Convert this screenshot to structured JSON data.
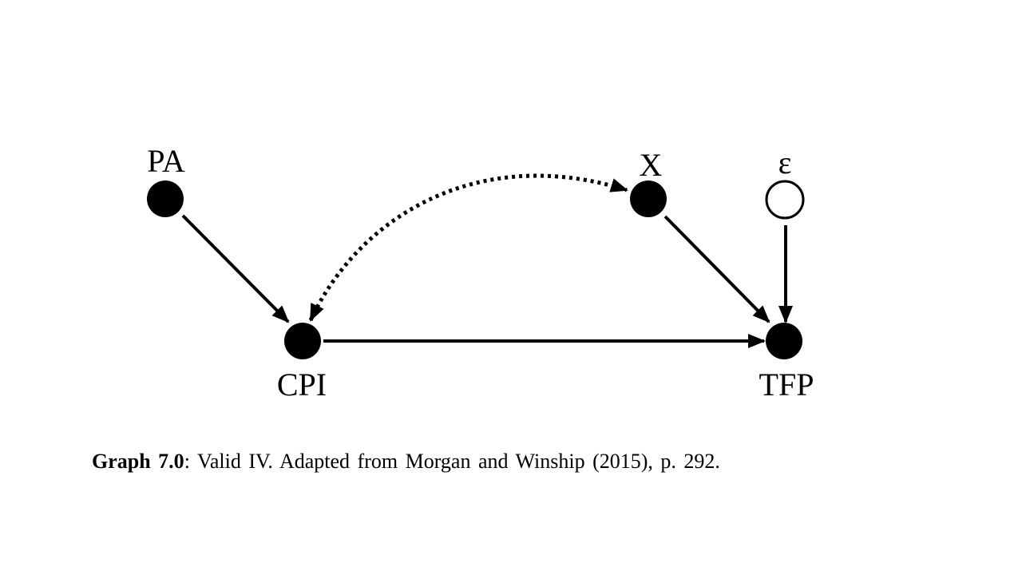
{
  "nodes": {
    "pa": {
      "label": "PA",
      "filled": true
    },
    "cpi": {
      "label": "CPI",
      "filled": true
    },
    "x": {
      "label": "X",
      "filled": true
    },
    "epsilon": {
      "label": "ε",
      "filled": false
    },
    "tfp": {
      "label": "TFP",
      "filled": true
    }
  },
  "edges": [
    {
      "from": "PA",
      "to": "CPI",
      "style": "solid",
      "direction": "forward"
    },
    {
      "from": "CPI",
      "to": "TFP",
      "style": "solid",
      "direction": "forward"
    },
    {
      "from": "X",
      "to": "TFP",
      "style": "solid",
      "direction": "forward"
    },
    {
      "from": "ε",
      "to": "TFP",
      "style": "solid",
      "direction": "forward"
    },
    {
      "from": "CPI",
      "to": "X",
      "style": "dotted",
      "direction": "bidirected"
    }
  ],
  "caption": {
    "bold": "Graph 7.0",
    "text": ": Valid IV. Adapted from Morgan and Winship (2015), p. 292."
  },
  "colors": {
    "ink": "#000000",
    "background": "#ffffff"
  }
}
